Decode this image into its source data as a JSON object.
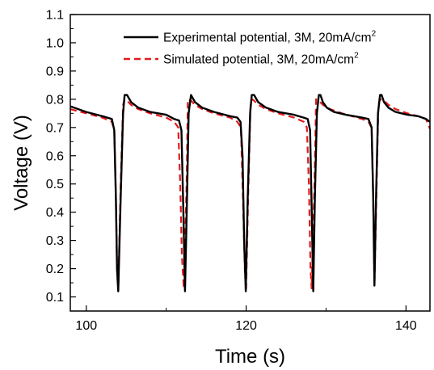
{
  "chart_data": {
    "type": "line",
    "xlabel": "Time (s)",
    "ylabel": "Voltage (V)",
    "xlim": [
      98,
      143
    ],
    "ylim": [
      0.05,
      1.1
    ],
    "x_ticks": [
      {
        "value": 100,
        "label": "100"
      },
      {
        "value": 120,
        "label": "120"
      },
      {
        "value": 140,
        "label": "140"
      }
    ],
    "x_minor_ticks": [
      110,
      130
    ],
    "y_ticks": [
      {
        "value": 0.1,
        "label": "0.1"
      },
      {
        "value": 0.2,
        "label": "0.2"
      },
      {
        "value": 0.3,
        "label": "0.3"
      },
      {
        "value": 0.4,
        "label": "0.4"
      },
      {
        "value": 0.5,
        "label": "0.5"
      },
      {
        "value": 0.6,
        "label": "0.6"
      },
      {
        "value": 0.7,
        "label": "0.7"
      },
      {
        "value": 0.8,
        "label": "0.8"
      },
      {
        "value": 0.9,
        "label": "0.9"
      },
      {
        "value": 1.0,
        "label": "1.0"
      },
      {
        "value": 1.1,
        "label": "1.1"
      }
    ],
    "grid": false,
    "legend_position": "top-right",
    "series": [
      {
        "name": "Experimental potential, 3M, 20mA/cm",
        "name_sup": "2",
        "color": "#000000",
        "dash": "solid",
        "x": [
          98.0,
          100.0,
          102.0,
          103.2,
          103.5,
          103.7,
          103.85,
          104.0,
          104.3,
          104.6,
          104.8,
          105.1,
          105.6,
          106.5,
          108.0,
          110.0,
          111.0,
          111.6,
          111.9,
          112.15,
          112.35,
          112.6,
          112.8,
          113.1,
          113.6,
          114.5,
          116.0,
          118.0,
          118.9,
          119.3,
          119.55,
          119.75,
          119.95,
          120.2,
          120.5,
          120.7,
          121.0,
          121.5,
          122.5,
          124.0,
          126.0,
          127.2,
          127.7,
          128.0,
          128.25,
          128.4,
          128.6,
          128.85,
          129.1,
          129.3,
          129.6,
          130.1,
          131.0,
          132.5,
          134.5,
          135.3,
          135.7,
          135.9,
          136.05,
          136.25,
          136.5,
          136.75,
          136.95,
          137.25,
          137.8,
          138.7,
          140.2,
          141.5,
          142.5,
          143.0
        ],
        "y": [
          0.775,
          0.755,
          0.74,
          0.73,
          0.69,
          0.45,
          0.2,
          0.12,
          0.45,
          0.75,
          0.815,
          0.815,
          0.79,
          0.77,
          0.755,
          0.745,
          0.73,
          0.725,
          0.69,
          0.4,
          0.12,
          0.45,
          0.75,
          0.815,
          0.79,
          0.77,
          0.755,
          0.74,
          0.735,
          0.72,
          0.6,
          0.3,
          0.12,
          0.45,
          0.75,
          0.815,
          0.815,
          0.79,
          0.77,
          0.755,
          0.745,
          0.735,
          0.73,
          0.69,
          0.35,
          0.12,
          0.45,
          0.75,
          0.815,
          0.815,
          0.79,
          0.77,
          0.755,
          0.745,
          0.735,
          0.73,
          0.7,
          0.45,
          0.14,
          0.45,
          0.75,
          0.815,
          0.815,
          0.79,
          0.77,
          0.755,
          0.745,
          0.74,
          0.73,
          0.72
        ]
      },
      {
        "name": "Simulated potential, 3M, 20mA/cm",
        "name_sup": "2",
        "color": "#e31a1c",
        "dash": "8,5",
        "x": [
          98.0,
          100.0,
          102.0,
          103.2,
          103.5,
          103.7,
          103.85,
          104.0,
          104.3,
          104.6,
          104.8,
          105.1,
          105.6,
          106.5,
          108.0,
          110.0,
          111.0,
          111.5,
          111.75,
          111.95,
          112.2,
          112.55,
          112.7,
          113.1,
          113.6,
          114.5,
          116.0,
          118.0,
          118.9,
          119.35,
          119.65,
          119.85,
          120.0,
          120.25,
          120.55,
          120.75,
          121.0,
          121.5,
          122.5,
          124.0,
          126.0,
          127.2,
          127.6,
          127.85,
          128.05,
          128.2,
          128.55,
          128.75,
          129.1,
          129.6,
          130.5,
          132.0,
          134.5,
          135.3,
          135.7,
          135.9,
          136.05,
          136.25,
          136.55,
          136.75,
          137.25,
          137.8,
          138.7,
          140.2,
          141.5,
          142.5,
          143.0
        ],
        "y": [
          0.765,
          0.75,
          0.735,
          0.72,
          0.69,
          0.45,
          0.2,
          0.12,
          0.5,
          0.78,
          0.8,
          0.795,
          0.78,
          0.765,
          0.75,
          0.735,
          0.72,
          0.7,
          0.5,
          0.25,
          0.13,
          0.5,
          0.8,
          0.795,
          0.78,
          0.765,
          0.75,
          0.735,
          0.72,
          0.7,
          0.4,
          0.18,
          0.13,
          0.45,
          0.78,
          0.8,
          0.795,
          0.78,
          0.765,
          0.75,
          0.735,
          0.72,
          0.7,
          0.5,
          0.2,
          0.13,
          0.5,
          0.8,
          0.795,
          0.78,
          0.765,
          0.75,
          0.73,
          0.72,
          0.7,
          0.45,
          0.14,
          0.4,
          0.78,
          0.8,
          0.795,
          0.78,
          0.765,
          0.75,
          0.74,
          0.73,
          0.695
        ]
      }
    ]
  }
}
